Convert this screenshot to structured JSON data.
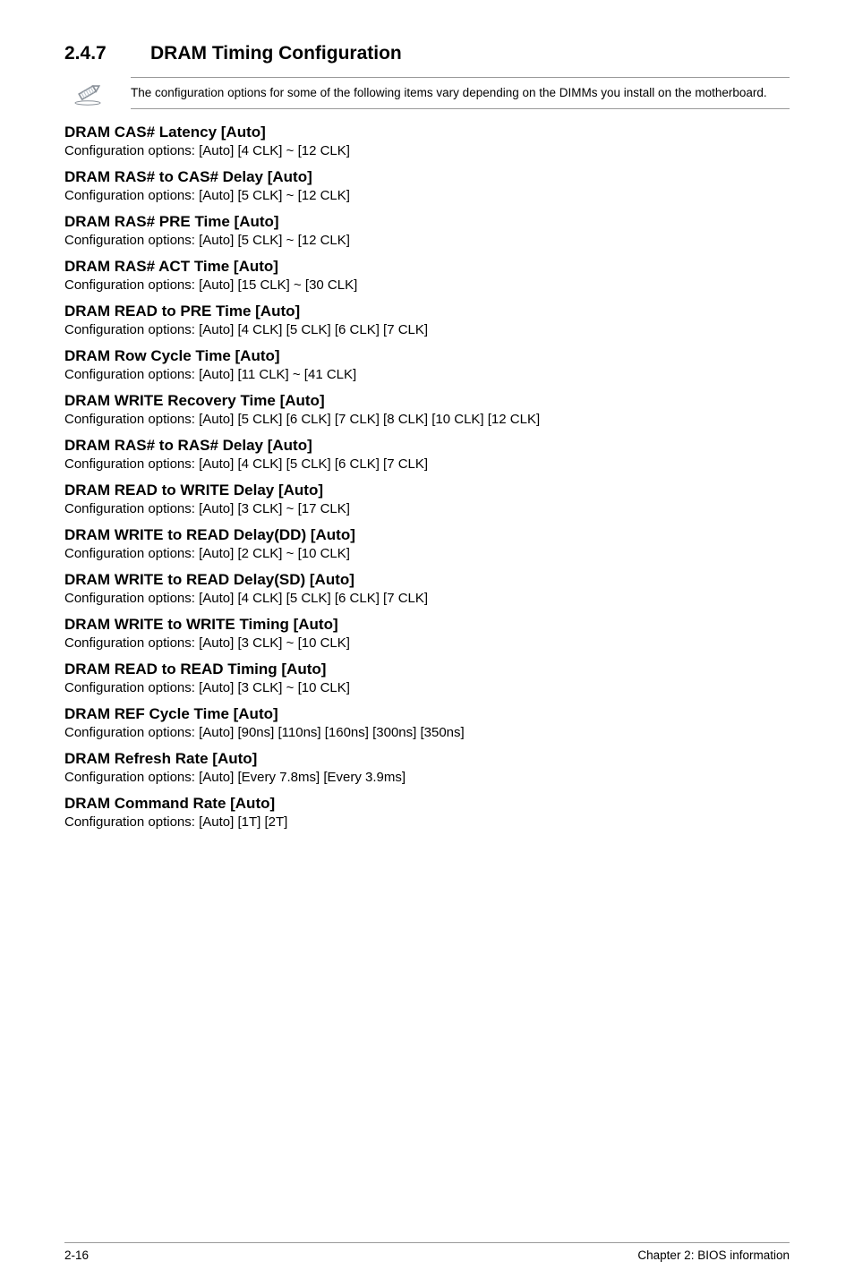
{
  "section": {
    "number": "2.4.7",
    "title": "DRAM Timing Configuration"
  },
  "note": "The configuration options for some of the following items vary depending on the DIMMs you install on the motherboard.",
  "noteIcon": {
    "width": 36,
    "height": 28,
    "stroke": "#8a9199",
    "strokeWidth": 2,
    "hatch": "#b8c0c8"
  },
  "settings": [
    {
      "title": "DRAM CAS# Latency [Auto]",
      "options": "Configuration options: [Auto] [4 CLK] ~ [12 CLK]"
    },
    {
      "title": "DRAM RAS# to CAS# Delay [Auto]",
      "options": "Configuration options: [Auto] [5 CLK] ~ [12 CLK]"
    },
    {
      "title": "DRAM RAS# PRE Time [Auto]",
      "options": "Configuration options: [Auto] [5 CLK] ~ [12 CLK]"
    },
    {
      "title": "DRAM RAS# ACT Time [Auto]",
      "options": "Configuration options: [Auto] [15 CLK] ~ [30 CLK]"
    },
    {
      "title": "DRAM READ to PRE Time [Auto]",
      "options": "Configuration options: [Auto] [4 CLK] [5 CLK] [6 CLK] [7 CLK]"
    },
    {
      "title": "DRAM Row Cycle Time [Auto]",
      "options": "Configuration options: [Auto] [11 CLK] ~ [41 CLK]"
    },
    {
      "title": "DRAM WRITE Recovery Time [Auto]",
      "options": "Configuration options: [Auto] [5 CLK] [6 CLK] [7 CLK] [8 CLK] [10 CLK] [12 CLK]"
    },
    {
      "title": "DRAM RAS# to RAS# Delay [Auto]",
      "options": "Configuration options: [Auto] [4 CLK] [5 CLK] [6 CLK] [7 CLK]"
    },
    {
      "title": "DRAM READ to WRITE Delay [Auto]",
      "options": "Configuration options: [Auto] [3 CLK] ~ [17 CLK]"
    },
    {
      "title": "DRAM WRITE to READ Delay(DD) [Auto]",
      "options": "Configuration options: [Auto] [2 CLK] ~ [10 CLK]"
    },
    {
      "title": "DRAM WRITE to READ Delay(SD) [Auto]",
      "options": "Configuration options: [Auto] [4 CLK] [5 CLK] [6 CLK] [7 CLK]"
    },
    {
      "title": "DRAM WRITE to WRITE Timing [Auto]",
      "options": "Configuration options: [Auto] [3 CLK] ~ [10 CLK]"
    },
    {
      "title": "DRAM READ to READ Timing [Auto]",
      "options": "Configuration options: [Auto] [3 CLK] ~ [10 CLK]"
    },
    {
      "title": "DRAM REF Cycle Time [Auto]",
      "options": "Configuration options: [Auto] [90ns] [110ns] [160ns] [300ns] [350ns]"
    },
    {
      "title": "DRAM Refresh Rate [Auto]",
      "options": "Configuration options: [Auto] [Every 7.8ms] [Every 3.9ms]"
    },
    {
      "title": "DRAM Command Rate [Auto]",
      "options": "Configuration options: [Auto] [1T] [2T]"
    }
  ],
  "footer": {
    "left": "2-16",
    "right": "Chapter 2: BIOS information"
  }
}
